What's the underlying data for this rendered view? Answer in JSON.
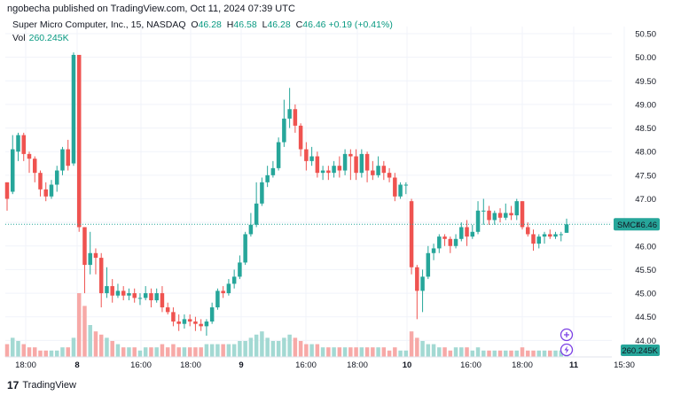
{
  "caption": "ngobecha published on TradingView.com, Oct 11, 2024 07:39 UTC",
  "legend": {
    "symbol": "Super Micro Computer, Inc., 15, NASDAQ",
    "o_label": "O",
    "o": "46.28",
    "h_label": "H",
    "h": "46.58",
    "l_label": "L",
    "l": "46.28",
    "c_label": "C",
    "c": "46.46",
    "change": "+0.19 (+0.41%)",
    "vol_label": "Vol",
    "vol": "260.245K"
  },
  "price_badge": {
    "symbol": "SMCI",
    "price": "46.46"
  },
  "vol_badge": "260.245K",
  "footer": {
    "brand": "TradingView"
  },
  "colors": {
    "up": "#26a69a",
    "down": "#ef5350",
    "up_vol": "#a3d9d3",
    "down_vol": "#f7a9a7",
    "price_line": "#26a69a"
  },
  "chart_data": {
    "type": "candlestick",
    "y_ticks": [
      "50.50",
      "50.00",
      "49.50",
      "49.00",
      "48.50",
      "48.00",
      "47.50",
      "47.00",
      "46.50",
      "46.00",
      "45.50",
      "45.00",
      "44.50",
      "44.00"
    ],
    "x_ticks": [
      {
        "label": "18:00",
        "bold": false
      },
      {
        "label": "8",
        "bold": true
      },
      {
        "label": "16:00",
        "bold": false
      },
      {
        "label": "18:00",
        "bold": false
      },
      {
        "label": "9",
        "bold": true
      },
      {
        "label": "16:00",
        "bold": false
      },
      {
        "label": "18:00",
        "bold": false
      },
      {
        "label": "10",
        "bold": true
      },
      {
        "label": "16:00",
        "bold": false
      },
      {
        "label": "18:00",
        "bold": false
      },
      {
        "label": "11",
        "bold": true
      },
      {
        "label": "15:30",
        "bold": false
      }
    ],
    "ylim": [
      43.65,
      50.65
    ],
    "last_price": 46.46,
    "candles": [
      [
        47.35,
        47.0,
        47.35,
        46.75,
        2.0
      ],
      [
        47.15,
        48.05,
        48.35,
        47.1,
        3.0
      ],
      [
        48.0,
        48.35,
        48.4,
        47.8,
        2.5
      ],
      [
        48.35,
        47.95,
        48.4,
        47.8,
        2.0
      ],
      [
        47.95,
        47.85,
        48.0,
        47.55,
        1.5
      ],
      [
        47.85,
        47.55,
        47.9,
        47.35,
        1.5
      ],
      [
        47.55,
        47.2,
        47.6,
        47.05,
        1.0
      ],
      [
        47.2,
        47.05,
        47.35,
        46.95,
        1.0
      ],
      [
        47.05,
        47.3,
        47.4,
        47.0,
        1.0
      ],
      [
        47.3,
        47.6,
        47.7,
        47.15,
        1.0
      ],
      [
        47.6,
        48.05,
        48.1,
        47.5,
        1.5
      ],
      [
        48.05,
        47.7,
        48.25,
        47.6,
        1.5
      ],
      [
        47.75,
        50.05,
        50.1,
        47.7,
        3.0
      ],
      [
        50.05,
        46.4,
        50.05,
        46.3,
        10.0
      ],
      [
        46.4,
        45.6,
        46.4,
        45.0,
        8.0
      ],
      [
        45.6,
        45.85,
        46.3,
        45.4,
        5.0
      ],
      [
        45.85,
        45.75,
        45.95,
        45.4,
        4.0
      ],
      [
        45.75,
        45.0,
        45.85,
        44.7,
        3.5
      ],
      [
        45.0,
        45.15,
        45.55,
        44.9,
        3.0
      ],
      [
        45.15,
        44.95,
        45.3,
        44.8,
        2.5
      ],
      [
        44.95,
        45.05,
        45.2,
        44.9,
        2.0
      ],
      [
        45.05,
        44.95,
        45.15,
        44.85,
        1.5
      ],
      [
        44.95,
        45.0,
        45.1,
        44.85,
        1.5
      ],
      [
        45.0,
        44.9,
        45.1,
        44.8,
        1.5
      ],
      [
        44.9,
        44.9,
        45.0,
        44.75,
        1.0
      ],
      [
        44.9,
        45.0,
        45.15,
        44.85,
        1.5
      ],
      [
        45.0,
        44.85,
        45.1,
        44.7,
        1.5
      ],
      [
        44.85,
        45.0,
        45.1,
        44.8,
        1.5
      ],
      [
        45.0,
        44.7,
        45.15,
        44.6,
        2.0
      ],
      [
        44.7,
        44.6,
        44.8,
        44.55,
        1.5
      ],
      [
        44.6,
        44.4,
        44.7,
        44.3,
        2.0
      ],
      [
        44.4,
        44.35,
        44.55,
        44.2,
        1.5
      ],
      [
        44.35,
        44.45,
        44.55,
        44.25,
        1.5
      ],
      [
        44.45,
        44.4,
        44.55,
        44.3,
        1.5
      ],
      [
        44.4,
        44.35,
        44.5,
        44.2,
        1.5
      ],
      [
        44.35,
        44.3,
        44.45,
        44.2,
        1.5
      ],
      [
        44.3,
        44.4,
        44.45,
        44.1,
        2.0
      ],
      [
        44.4,
        44.7,
        44.8,
        44.35,
        2.0
      ],
      [
        44.7,
        45.05,
        45.1,
        44.65,
        2.0
      ],
      [
        45.05,
        45.0,
        45.15,
        44.9,
        2.0
      ],
      [
        45.0,
        45.2,
        45.3,
        44.95,
        2.0
      ],
      [
        45.2,
        45.35,
        45.5,
        45.1,
        2.0
      ],
      [
        45.35,
        45.65,
        45.8,
        45.3,
        2.5
      ],
      [
        45.65,
        46.25,
        46.3,
        45.6,
        2.5
      ],
      [
        46.25,
        46.45,
        46.7,
        46.2,
        3.0
      ],
      [
        46.45,
        46.9,
        47.35,
        46.4,
        3.5
      ],
      [
        46.9,
        47.35,
        47.45,
        46.85,
        4.0
      ],
      [
        47.35,
        47.5,
        47.7,
        47.25,
        3.0
      ],
      [
        47.5,
        47.65,
        47.8,
        47.45,
        2.5
      ],
      [
        47.65,
        48.2,
        48.3,
        47.6,
        2.5
      ],
      [
        48.2,
        48.7,
        49.1,
        48.1,
        3.0
      ],
      [
        48.7,
        48.9,
        49.35,
        48.5,
        3.5
      ],
      [
        48.9,
        48.55,
        49.0,
        48.4,
        3.0
      ],
      [
        48.55,
        48.05,
        48.6,
        47.9,
        2.5
      ],
      [
        48.05,
        47.8,
        48.2,
        47.6,
        2.0
      ],
      [
        47.8,
        47.9,
        48.1,
        47.7,
        2.0
      ],
      [
        47.9,
        47.55,
        48.0,
        47.45,
        2.0
      ],
      [
        47.55,
        47.6,
        47.7,
        47.4,
        1.5
      ],
      [
        47.6,
        47.55,
        47.7,
        47.4,
        1.5
      ],
      [
        47.55,
        47.7,
        47.8,
        47.45,
        1.5
      ],
      [
        47.7,
        47.6,
        47.9,
        47.45,
        1.5
      ],
      [
        47.6,
        47.95,
        48.05,
        47.5,
        1.5
      ],
      [
        47.95,
        47.9,
        48.05,
        47.4,
        1.5
      ],
      [
        47.9,
        47.55,
        48.05,
        47.4,
        1.5
      ],
      [
        47.55,
        47.95,
        48.05,
        47.45,
        1.5
      ],
      [
        47.95,
        47.6,
        48.0,
        47.35,
        1.5
      ],
      [
        47.6,
        47.5,
        47.8,
        47.4,
        1.5
      ],
      [
        47.5,
        47.7,
        47.9,
        47.45,
        1.5
      ],
      [
        47.7,
        47.55,
        47.8,
        47.4,
        1.5
      ],
      [
        47.55,
        47.45,
        47.65,
        47.35,
        1.0
      ],
      [
        47.45,
        47.05,
        47.55,
        46.95,
        1.5
      ],
      [
        47.05,
        47.3,
        47.35,
        47.0,
        1.0
      ],
      [
        47.3,
        47.3,
        47.35,
        47.1,
        1.0
      ],
      [
        46.95,
        45.55,
        47.0,
        45.4,
        4.0
      ],
      [
        45.55,
        45.05,
        45.6,
        44.45,
        3.0
      ],
      [
        45.05,
        45.35,
        45.5,
        44.6,
        2.5
      ],
      [
        45.35,
        45.85,
        46.0,
        45.3,
        2.0
      ],
      [
        45.85,
        45.95,
        46.05,
        45.7,
        2.0
      ],
      [
        45.95,
        46.2,
        46.25,
        45.85,
        1.5
      ],
      [
        46.2,
        46.15,
        46.25,
        46.0,
        1.5
      ],
      [
        46.15,
        46.0,
        46.2,
        45.85,
        1.0
      ],
      [
        46.0,
        46.15,
        46.25,
        45.95,
        1.5
      ],
      [
        46.15,
        46.4,
        46.5,
        46.1,
        1.5
      ],
      [
        46.4,
        46.2,
        46.55,
        46.0,
        1.5
      ],
      [
        46.2,
        46.3,
        46.45,
        46.15,
        1.0
      ],
      [
        46.3,
        46.75,
        46.95,
        46.25,
        1.5
      ],
      [
        46.75,
        46.75,
        47.0,
        46.45,
        1.0
      ],
      [
        46.75,
        46.55,
        46.85,
        46.45,
        1.0
      ],
      [
        46.55,
        46.7,
        46.75,
        46.45,
        1.0
      ],
      [
        46.7,
        46.6,
        46.8,
        46.5,
        1.0
      ],
      [
        46.6,
        46.7,
        46.9,
        46.55,
        1.0
      ],
      [
        46.7,
        46.65,
        46.85,
        46.55,
        1.0
      ],
      [
        46.65,
        46.95,
        47.0,
        46.55,
        1.0
      ],
      [
        46.95,
        46.4,
        46.95,
        46.35,
        1.5
      ],
      [
        46.4,
        46.25,
        46.5,
        46.2,
        1.0
      ],
      [
        46.25,
        46.05,
        46.35,
        45.9,
        1.0
      ],
      [
        46.05,
        46.2,
        46.25,
        45.95,
        1.0
      ],
      [
        46.2,
        46.25,
        46.3,
        46.05,
        1.0
      ],
      [
        46.25,
        46.2,
        46.35,
        46.15,
        1.0
      ],
      [
        46.2,
        46.25,
        46.3,
        46.15,
        1.0
      ],
      [
        46.25,
        46.25,
        46.3,
        46.1,
        1.0
      ],
      [
        46.28,
        46.46,
        46.58,
        46.28,
        1.0
      ]
    ]
  }
}
